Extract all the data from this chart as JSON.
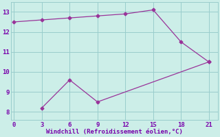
{
  "line1_x": [
    0,
    3,
    6,
    9,
    12,
    15,
    18,
    21
  ],
  "line1_y": [
    12.5,
    12.6,
    12.7,
    12.8,
    12.9,
    13.1,
    11.5,
    10.5
  ],
  "line2_x": [
    3,
    6,
    9,
    21
  ],
  "line2_y": [
    8.2,
    9.6,
    8.5,
    10.5
  ],
  "line_color": "#993399",
  "marker": "D",
  "marker_size": 2.5,
  "linewidth": 0.9,
  "xlabel": "Windchill (Refroidissement éolien,°C)",
  "xlabel_color": "#7700aa",
  "xlabel_fontsize": 6.5,
  "bg_color": "#cceee8",
  "grid_color": "#99cccc",
  "tick_color": "#7700aa",
  "tick_fontsize": 6.5,
  "xticks": [
    0,
    3,
    6,
    9,
    12,
    15,
    18,
    21
  ],
  "yticks": [
    8,
    9,
    10,
    11,
    12,
    13
  ],
  "xlim": [
    -0.3,
    22.0
  ],
  "ylim": [
    7.6,
    13.5
  ]
}
